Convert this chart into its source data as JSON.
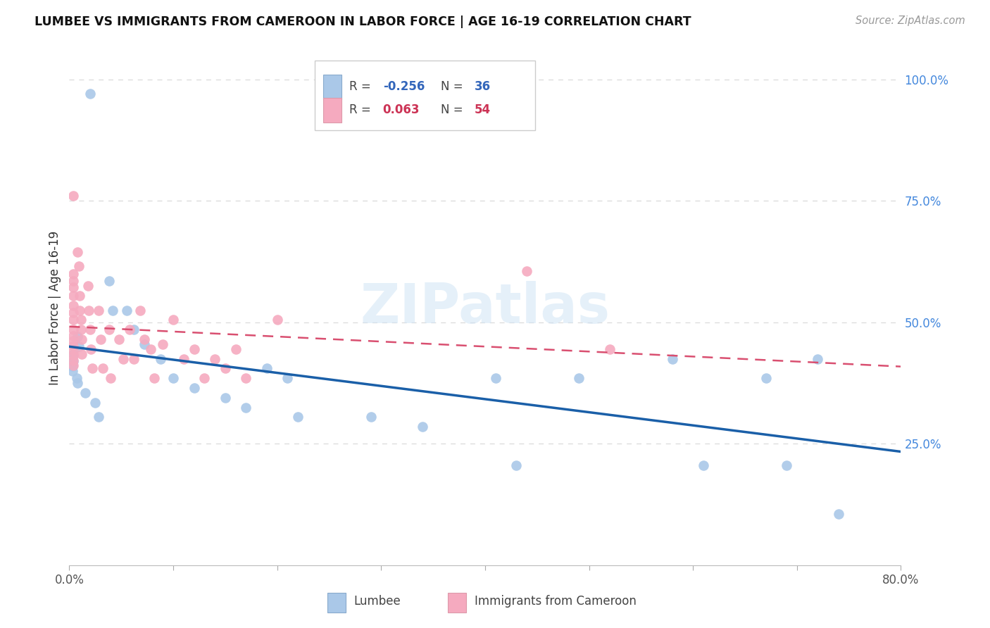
{
  "title": "LUMBEE VS IMMIGRANTS FROM CAMEROON IN LABOR FORCE | AGE 16-19 CORRELATION CHART",
  "source": "Source: ZipAtlas.com",
  "ylabel": "In Labor Force | Age 16-19",
  "legend_label_blue": "Lumbee",
  "legend_label_pink": "Immigrants from Cameroon",
  "R_blue": -0.256,
  "N_blue": 36,
  "R_pink": 0.063,
  "N_pink": 54,
  "xlim": [
    0.0,
    0.8
  ],
  "ylim": [
    0.0,
    1.06
  ],
  "y_ticks_right": [
    0.25,
    0.5,
    0.75,
    1.0
  ],
  "y_tick_labels_right": [
    "25.0%",
    "50.0%",
    "75.0%",
    "100.0%"
  ],
  "grid_color": "#dddddd",
  "background_color": "#ffffff",
  "blue_color": "#aac8e8",
  "pink_color": "#f5aabf",
  "blue_line_color": "#1a5fa8",
  "pink_line_color": "#d94f70",
  "watermark": "ZIPatlas",
  "lumbee_x": [
    0.02,
    0.008,
    0.009,
    0.004,
    0.004,
    0.003,
    0.003,
    0.007,
    0.008,
    0.015,
    0.025,
    0.028,
    0.038,
    0.042,
    0.055,
    0.062,
    0.072,
    0.088,
    0.1,
    0.12,
    0.15,
    0.17,
    0.19,
    0.21,
    0.22,
    0.29,
    0.34,
    0.41,
    0.43,
    0.49,
    0.58,
    0.61,
    0.67,
    0.69,
    0.72,
    0.74
  ],
  "lumbee_y": [
    0.97,
    0.47,
    0.45,
    0.435,
    0.42,
    0.41,
    0.4,
    0.385,
    0.375,
    0.355,
    0.335,
    0.305,
    0.585,
    0.525,
    0.525,
    0.485,
    0.455,
    0.425,
    0.385,
    0.365,
    0.345,
    0.325,
    0.405,
    0.385,
    0.305,
    0.305,
    0.285,
    0.385,
    0.205,
    0.385,
    0.425,
    0.205,
    0.385,
    0.205,
    0.425,
    0.105
  ],
  "cameroon_x": [
    0.004,
    0.004,
    0.004,
    0.004,
    0.004,
    0.004,
    0.004,
    0.004,
    0.004,
    0.004,
    0.004,
    0.004,
    0.004,
    0.004,
    0.004,
    0.004,
    0.008,
    0.009,
    0.01,
    0.01,
    0.011,
    0.011,
    0.012,
    0.012,
    0.018,
    0.019,
    0.02,
    0.021,
    0.022,
    0.028,
    0.03,
    0.032,
    0.038,
    0.04,
    0.048,
    0.052,
    0.058,
    0.062,
    0.068,
    0.072,
    0.078,
    0.082,
    0.09,
    0.1,
    0.11,
    0.12,
    0.13,
    0.14,
    0.15,
    0.16,
    0.17,
    0.2,
    0.44,
    0.52
  ],
  "cameroon_y": [
    0.76,
    0.6,
    0.585,
    0.572,
    0.555,
    0.535,
    0.52,
    0.505,
    0.485,
    0.472,
    0.462,
    0.452,
    0.442,
    0.432,
    0.422,
    0.412,
    0.645,
    0.615,
    0.555,
    0.525,
    0.505,
    0.485,
    0.465,
    0.435,
    0.575,
    0.525,
    0.485,
    0.445,
    0.405,
    0.525,
    0.465,
    0.405,
    0.485,
    0.385,
    0.465,
    0.425,
    0.485,
    0.425,
    0.525,
    0.465,
    0.445,
    0.385,
    0.455,
    0.505,
    0.425,
    0.445,
    0.385,
    0.425,
    0.405,
    0.445,
    0.385,
    0.505,
    0.605,
    0.445
  ]
}
